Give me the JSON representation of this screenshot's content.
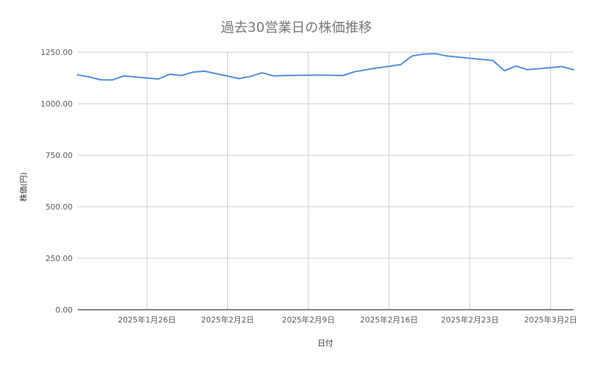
{
  "chart_data": {
    "type": "line",
    "title": "過去30営業日の株価推移",
    "xlabel": "日付",
    "ylabel": "株価(円)",
    "ylim": [
      0,
      1250
    ],
    "yticks": [
      0,
      250,
      500,
      750,
      1000,
      1250
    ],
    "ytick_labels": [
      "0.00",
      "250.00",
      "500.00",
      "750.00",
      "1000.00",
      "1250.00"
    ],
    "xlim": [
      "2025-01-20",
      "2025-03-04"
    ],
    "xticks": [
      "2025-01-26",
      "2025-02-02",
      "2025-02-09",
      "2025-02-16",
      "2025-02-23",
      "2025-03-02"
    ],
    "xtick_labels": [
      "2025年1月26日",
      "2025年2月2日",
      "2025年2月9日",
      "2025年2月16日",
      "2025年2月23日",
      "2025年3月2日"
    ],
    "grid": true,
    "legend": "none",
    "colors": {
      "line": "#4a89dc",
      "grid": "#cccccc",
      "axis": "#333333",
      "text": "#555555",
      "title": "#757575"
    },
    "series": [
      {
        "x": [
          "2025-01-20",
          "2025-01-21",
          "2025-01-22",
          "2025-01-23",
          "2025-01-24",
          "2025-01-27",
          "2025-01-28",
          "2025-01-29",
          "2025-01-30",
          "2025-01-31",
          "2025-02-03",
          "2025-02-04",
          "2025-02-05",
          "2025-02-06",
          "2025-02-07",
          "2025-02-10",
          "2025-02-12",
          "2025-02-13",
          "2025-02-14",
          "2025-02-17",
          "2025-02-18",
          "2025-02-19",
          "2025-02-20",
          "2025-02-21",
          "2025-02-25",
          "2025-02-26",
          "2025-02-27",
          "2025-02-28",
          "2025-03-03",
          "2025-03-04"
        ],
        "values": [
          1140,
          1130,
          1116,
          1115,
          1135,
          1120,
          1143,
          1137,
          1153,
          1158,
          1122,
          1133,
          1150,
          1135,
          1137,
          1139,
          1137,
          1155,
          1165,
          1190,
          1232,
          1241,
          1243,
          1232,
          1210,
          1160,
          1183,
          1165,
          1180,
          1165
        ]
      }
    ]
  }
}
